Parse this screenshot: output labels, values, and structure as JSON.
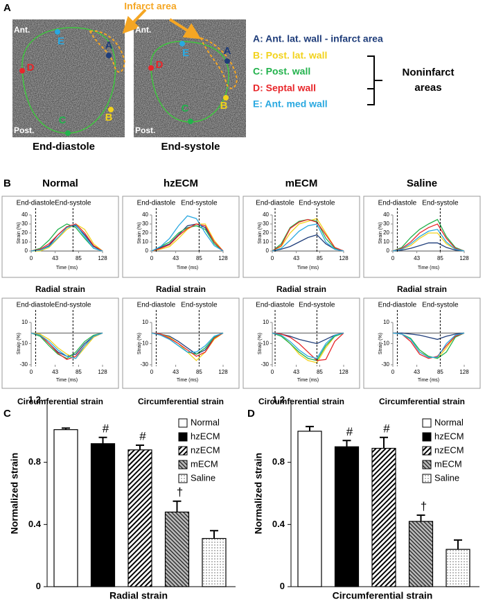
{
  "panel_a": {
    "label": "A",
    "infarct_note": "Infarct area",
    "images": [
      {
        "top_label": "Ant.",
        "bottom_label": "Post.",
        "caption": "End-diastole",
        "points": [
          "A",
          "B",
          "C",
          "D",
          "E"
        ]
      },
      {
        "top_label": "Ant.",
        "bottom_label": "Post.",
        "caption": "End-systole",
        "points": [
          "A",
          "B",
          "C",
          "D",
          "E"
        ]
      }
    ],
    "legend": [
      {
        "text": "A: Ant. lat. wall - infarct area",
        "color": "#1f3d7a"
      },
      {
        "text": "B: Post. lat. wall",
        "color": "#f2d21b"
      },
      {
        "text": "C: Post. wall",
        "color": "#22b24c"
      },
      {
        "text": "D: Septal wall",
        "color": "#e8262a"
      },
      {
        "text": "E: Ant. med wall",
        "color": "#29a8e0"
      }
    ],
    "group_label": [
      "Noninfarct",
      "areas"
    ]
  },
  "panel_b": {
    "label": "B",
    "columns": [
      "Normal",
      "hzECM",
      "mECM",
      "Saline"
    ]
  },
  "chart_data": [
    {
      "type": "line",
      "caption": "Radial strain",
      "xlabel": "Time (ms)",
      "ylabel": "Strain (%)",
      "x": [
        0,
        16,
        32,
        48,
        64,
        80,
        96,
        112,
        128
      ],
      "xlim": [
        0,
        128
      ],
      "xticks": [
        0,
        43,
        85,
        128
      ],
      "ylim": [
        0,
        40
      ],
      "yticks": [
        0,
        10,
        20,
        30,
        40
      ],
      "vlines": [
        {
          "x": 8,
          "label": "End-diastole"
        },
        {
          "x": 75,
          "label": "End-systole"
        }
      ],
      "series": [
        {
          "color": "#1f3d7a",
          "values": [
            0,
            1,
            6,
            18,
            27,
            28,
            18,
            5,
            0
          ]
        },
        {
          "color": "#f2d21b",
          "values": [
            0,
            0,
            4,
            14,
            24,
            30,
            24,
            8,
            0
          ]
        },
        {
          "color": "#22b24c",
          "values": [
            0,
            3,
            12,
            24,
            30,
            26,
            14,
            3,
            0
          ]
        },
        {
          "color": "#e8262a",
          "values": [
            0,
            2,
            8,
            18,
            27,
            30,
            20,
            6,
            0
          ]
        },
        {
          "color": "#29a8e0",
          "values": [
            0,
            1,
            5,
            15,
            26,
            29,
            16,
            3,
            0
          ]
        }
      ]
    },
    {
      "type": "line",
      "caption": "Radial strain",
      "xlabel": "Time (ms)",
      "ylabel": "Strain (%)",
      "x": [
        0,
        16,
        32,
        48,
        64,
        80,
        96,
        112,
        128
      ],
      "xlim": [
        0,
        128
      ],
      "xticks": [
        0,
        43,
        85,
        128
      ],
      "ylim": [
        0,
        40
      ],
      "yticks": [
        0,
        10,
        20,
        30,
        40
      ],
      "vlines": [
        {
          "x": 8,
          "label": "End-diastole"
        },
        {
          "x": 85,
          "label": "End-systole"
        }
      ],
      "series": [
        {
          "color": "#1f3d7a",
          "values": [
            0,
            4,
            8,
            18,
            28,
            30,
            26,
            10,
            0
          ]
        },
        {
          "color": "#f2d21b",
          "values": [
            0,
            2,
            5,
            14,
            24,
            30,
            30,
            12,
            0
          ]
        },
        {
          "color": "#22b24c",
          "values": [
            0,
            5,
            10,
            20,
            26,
            28,
            24,
            8,
            0
          ]
        },
        {
          "color": "#e8262a",
          "values": [
            0,
            3,
            7,
            17,
            25,
            30,
            28,
            10,
            0
          ]
        },
        {
          "color": "#29a8e0",
          "values": [
            0,
            5,
            14,
            28,
            39,
            36,
            20,
            6,
            0
          ]
        }
      ]
    },
    {
      "type": "line",
      "caption": "Radial strain",
      "xlabel": "Time (ms)",
      "ylabel": "Strain (%)",
      "x": [
        0,
        16,
        32,
        48,
        64,
        80,
        96,
        112,
        128
      ],
      "xlim": [
        0,
        128
      ],
      "xticks": [
        0,
        43,
        85,
        128
      ],
      "ylim": [
        0,
        40
      ],
      "yticks": [
        0,
        10,
        20,
        30,
        40
      ],
      "vlines": [
        {
          "x": 5,
          "label": "End-diastole"
        },
        {
          "x": 80,
          "label": "End-systole"
        }
      ],
      "series": [
        {
          "color": "#1f3d7a",
          "values": [
            0,
            2,
            5,
            10,
            15,
            18,
            8,
            2,
            0
          ]
        },
        {
          "color": "#f2d21b",
          "values": [
            0,
            5,
            20,
            30,
            33,
            36,
            20,
            4,
            0
          ]
        },
        {
          "color": "#22b24c",
          "values": [
            0,
            8,
            26,
            33,
            35,
            33,
            14,
            3,
            0
          ]
        },
        {
          "color": "#e8262a",
          "values": [
            0,
            6,
            25,
            32,
            35,
            32,
            18,
            4,
            0
          ]
        },
        {
          "color": "#29a8e0",
          "values": [
            0,
            3,
            12,
            22,
            28,
            30,
            10,
            2,
            0
          ]
        }
      ]
    },
    {
      "type": "line",
      "caption": "Radial strain",
      "xlabel": "Time (ms)",
      "ylabel": "Strain (%)",
      "x": [
        0,
        16,
        32,
        48,
        64,
        80,
        96,
        112,
        128
      ],
      "xlim": [
        0,
        128
      ],
      "xticks": [
        0,
        43,
        85,
        128
      ],
      "ylim": [
        0,
        40
      ],
      "yticks": [
        0,
        10,
        20,
        30,
        40
      ],
      "vlines": [
        {
          "x": 8,
          "label": "End-diastole"
        },
        {
          "x": 85,
          "label": "End-systole"
        }
      ],
      "series": [
        {
          "color": "#1f3d7a",
          "values": [
            0,
            1,
            3,
            6,
            9,
            9,
            4,
            1,
            0
          ]
        },
        {
          "color": "#f2d21b",
          "values": [
            0,
            2,
            6,
            14,
            20,
            20,
            8,
            2,
            0
          ]
        },
        {
          "color": "#22b24c",
          "values": [
            0,
            4,
            15,
            24,
            30,
            35,
            16,
            4,
            0
          ]
        },
        {
          "color": "#e8262a",
          "values": [
            0,
            3,
            10,
            20,
            26,
            30,
            14,
            3,
            0
          ]
        },
        {
          "color": "#29a8e0",
          "values": [
            0,
            2,
            8,
            16,
            22,
            24,
            10,
            2,
            0
          ]
        }
      ]
    },
    {
      "type": "line",
      "caption": "Circumferential strain",
      "xlabel": "Time (ms)",
      "ylabel": "Strain (%)",
      "x": [
        0,
        16,
        32,
        48,
        64,
        80,
        96,
        112,
        128
      ],
      "xlim": [
        0,
        128
      ],
      "xticks": [
        0,
        43,
        85,
        128
      ],
      "ylim": [
        -30,
        10
      ],
      "yticks": [
        -30,
        -10,
        10
      ],
      "vlines": [
        {
          "x": 8,
          "label": "End-diastole"
        },
        {
          "x": 75,
          "label": "End-systole"
        }
      ],
      "series": [
        {
          "color": "#1f3d7a",
          "values": [
            0,
            -2,
            -10,
            -18,
            -22,
            -20,
            -10,
            -3,
            0
          ]
        },
        {
          "color": "#f2d21b",
          "values": [
            0,
            -1,
            -6,
            -14,
            -20,
            -24,
            -14,
            -4,
            0
          ]
        },
        {
          "color": "#22b24c",
          "values": [
            0,
            -3,
            -12,
            -20,
            -24,
            -18,
            -8,
            -2,
            0
          ]
        },
        {
          "color": "#e8262a",
          "values": [
            0,
            -2,
            -10,
            -19,
            -25,
            -22,
            -12,
            -3,
            0
          ]
        },
        {
          "color": "#29a8e0",
          "values": [
            0,
            -2,
            -8,
            -16,
            -22,
            -24,
            -12,
            -3,
            0
          ]
        }
      ]
    },
    {
      "type": "line",
      "caption": "Circumferential strain",
      "xlabel": "Time (ms)",
      "ylabel": "Strain (%)",
      "x": [
        0,
        16,
        32,
        48,
        64,
        80,
        96,
        112,
        128
      ],
      "xlim": [
        0,
        128
      ],
      "xticks": [
        0,
        43,
        85,
        128
      ],
      "ylim": [
        -30,
        10
      ],
      "yticks": [
        -30,
        -10,
        10
      ],
      "vlines": [
        {
          "x": 8,
          "label": "End-diastole"
        },
        {
          "x": 85,
          "label": "End-systole"
        }
      ],
      "series": [
        {
          "color": "#1f3d7a",
          "values": [
            0,
            -1,
            -3,
            -8,
            -14,
            -20,
            -16,
            -5,
            0
          ]
        },
        {
          "color": "#f2d21b",
          "values": [
            0,
            -1,
            -4,
            -10,
            -18,
            -26,
            -18,
            -6,
            0
          ]
        },
        {
          "color": "#22b24c",
          "values": [
            0,
            -2,
            -6,
            -12,
            -18,
            -20,
            -14,
            -4,
            0
          ]
        },
        {
          "color": "#e8262a",
          "values": [
            0,
            -1,
            -5,
            -10,
            -16,
            -22,
            -18,
            -5,
            0
          ]
        },
        {
          "color": "#29a8e0",
          "values": [
            0,
            -2,
            -6,
            -12,
            -18,
            -18,
            -12,
            -3,
            0
          ]
        }
      ]
    },
    {
      "type": "line",
      "caption": "Circumferential strain",
      "xlabel": "Time (ms)",
      "ylabel": "Strain (%)",
      "x": [
        0,
        16,
        32,
        48,
        64,
        80,
        96,
        112,
        128
      ],
      "xlim": [
        0,
        128
      ],
      "xticks": [
        0,
        43,
        85,
        128
      ],
      "ylim": [
        -30,
        10
      ],
      "yticks": [
        -30,
        -10,
        10
      ],
      "vlines": [
        {
          "x": 5,
          "label": "End-diastole"
        },
        {
          "x": 80,
          "label": "End-systole"
        }
      ],
      "series": [
        {
          "color": "#1f3d7a",
          "values": [
            0,
            -1,
            -3,
            -6,
            -8,
            -10,
            -6,
            -2,
            0
          ]
        },
        {
          "color": "#f2d21b",
          "values": [
            0,
            -2,
            -10,
            -20,
            -26,
            -28,
            -14,
            -3,
            0
          ]
        },
        {
          "color": "#22b24c",
          "values": [
            0,
            -3,
            -10,
            -18,
            -24,
            -26,
            -12,
            -3,
            0
          ]
        },
        {
          "color": "#e8262a",
          "values": [
            0,
            -1,
            -4,
            -10,
            -18,
            -26,
            -25,
            -8,
            0
          ]
        },
        {
          "color": "#29a8e0",
          "values": [
            0,
            -2,
            -8,
            -16,
            -22,
            -24,
            -10,
            -2,
            0
          ]
        }
      ]
    },
    {
      "type": "line",
      "caption": "Circumferential strain",
      "xlabel": "Time (ms)",
      "ylabel": "Strain (%)",
      "x": [
        0,
        16,
        32,
        48,
        64,
        80,
        96,
        112,
        128
      ],
      "xlim": [
        0,
        128
      ],
      "xticks": [
        0,
        43,
        85,
        128
      ],
      "ylim": [
        -30,
        10
      ],
      "yticks": [
        -30,
        -10,
        10
      ],
      "vlines": [
        {
          "x": 8,
          "label": "End-diastole"
        },
        {
          "x": 85,
          "label": "End-systole"
        }
      ],
      "series": [
        {
          "color": "#1f3d7a",
          "values": [
            0,
            0,
            -1,
            -2,
            -4,
            -6,
            -3,
            -1,
            0
          ]
        },
        {
          "color": "#f2d21b",
          "values": [
            0,
            -1,
            -6,
            -18,
            -22,
            -24,
            -14,
            -3,
            0
          ]
        },
        {
          "color": "#22b24c",
          "values": [
            0,
            -1,
            -5,
            -16,
            -22,
            -24,
            -18,
            -4,
            0
          ]
        },
        {
          "color": "#e8262a",
          "values": [
            0,
            -1,
            -8,
            -20,
            -24,
            -22,
            -12,
            -3,
            0
          ]
        },
        {
          "color": "#29a8e0",
          "values": [
            0,
            -1,
            -6,
            -18,
            -23,
            -23,
            -10,
            -2,
            0
          ]
        }
      ]
    },
    {
      "type": "bar",
      "panel": "C",
      "xlabel": "Radial strain",
      "ylabel": "Normalized strain",
      "categories": [
        "Normal",
        "hzECM",
        "nzECM",
        "mECM",
        "Saline"
      ],
      "values": [
        1.01,
        0.92,
        0.88,
        0.48,
        0.31
      ],
      "errors": [
        0.01,
        0.04,
        0.03,
        0.07,
        0.05
      ],
      "annotations": [
        null,
        "#",
        "#",
        "†",
        null
      ],
      "fills": [
        "white",
        "black",
        "diagonal",
        "cross",
        "dots"
      ],
      "ylim": [
        0,
        1.2
      ],
      "yticks": [
        0,
        0.4,
        0.8,
        1.2
      ],
      "legend": "upper right"
    },
    {
      "type": "bar",
      "panel": "D",
      "xlabel": "Circumferential strain",
      "ylabel": "Normalized strain",
      "categories": [
        "Normal",
        "hzECM",
        "nzECM",
        "mECM",
        "Saline"
      ],
      "values": [
        1.0,
        0.9,
        0.89,
        0.42,
        0.24
      ],
      "errors": [
        0.03,
        0.04,
        0.07,
        0.04,
        0.06
      ],
      "annotations": [
        null,
        "#",
        "#",
        "†",
        null
      ],
      "fills": [
        "white",
        "black",
        "diagonal",
        "cross",
        "dots"
      ],
      "ylim": [
        0,
        1.2
      ],
      "yticks": [
        0,
        0.4,
        0.8,
        1.2
      ],
      "legend": "upper right"
    }
  ]
}
